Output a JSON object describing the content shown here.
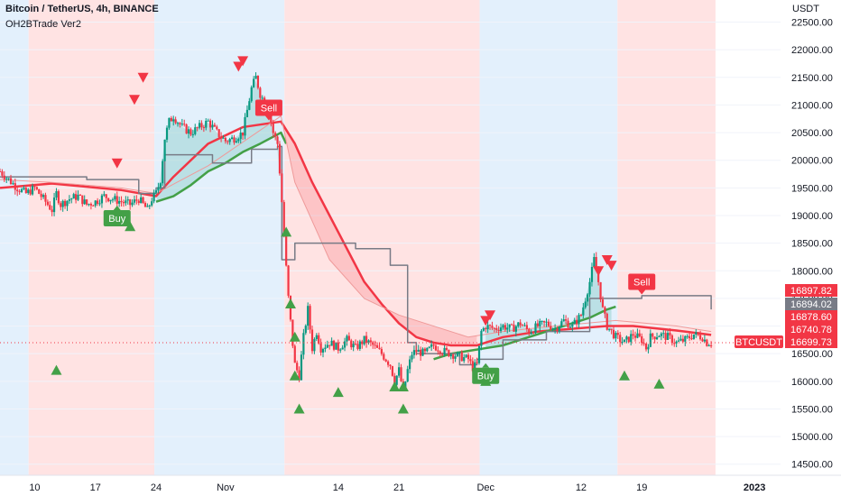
{
  "header": {
    "title": "Bitcoin / TetherUS, 4h, BINANCE",
    "indicator": "OH2BTrade Ver2",
    "currency": "USDT"
  },
  "colors": {
    "up": "#089981",
    "down": "#f23645",
    "buy": "#43a047",
    "sell": "#f23645",
    "band_red": "#ffe3e3",
    "band_blue": "#e3f0fc",
    "axis_text": "#131722",
    "grid": "#f0f3fa"
  },
  "chart_data": {
    "type": "candlestick",
    "ylim": [
      14300,
      22900
    ],
    "y_ticks": [
      14500,
      15000,
      15500,
      16000,
      16500,
      17000,
      17500,
      18000,
      18500,
      19000,
      19500,
      20000,
      20500,
      21000,
      21500,
      22000,
      22500
    ],
    "y_tick_labels": [
      "14500.00",
      "15000.00",
      "15500.00",
      "16000.00",
      "16500.00",
      "17000.00",
      "17500.00",
      "18000.00",
      "18500.00",
      "19000.00",
      "19500.00",
      "20000.00",
      "20500.00",
      "21000.00",
      "21500.00",
      "22000.00",
      "22500.00"
    ],
    "x_ticks": [
      {
        "label": "10",
        "t": 10
      },
      {
        "label": "17",
        "t": 17
      },
      {
        "label": "24",
        "t": 24
      },
      {
        "label": "Nov",
        "t": 32
      },
      {
        "label": "14",
        "t": 45
      },
      {
        "label": "21",
        "t": 52
      },
      {
        "label": "Dec",
        "t": 62
      },
      {
        "label": "12",
        "t": 73
      },
      {
        "label": "19",
        "t": 80
      },
      {
        "label": "2023",
        "t": 93
      }
    ],
    "background_bands": [
      {
        "from": 6,
        "to": 9.3,
        "color": "blue"
      },
      {
        "from": 9.3,
        "to": 23.8,
        "color": "red"
      },
      {
        "from": 23.8,
        "to": 38.8,
        "color": "blue"
      },
      {
        "from": 38.8,
        "to": 61.3,
        "color": "red"
      },
      {
        "from": 61.3,
        "to": 77.2,
        "color": "blue"
      },
      {
        "from": 77.2,
        "to": 88.5,
        "color": "red"
      }
    ],
    "price_path": [
      [
        6,
        19800
      ],
      [
        7,
        19650
      ],
      [
        8,
        19500
      ],
      [
        9,
        19400
      ],
      [
        10,
        19500
      ],
      [
        11,
        19300
      ],
      [
        12,
        19100
      ],
      [
        12.5,
        19400
      ],
      [
        13,
        19200
      ],
      [
        14,
        19300
      ],
      [
        15,
        19350
      ],
      [
        16,
        19200
      ],
      [
        17,
        19250
      ],
      [
        18,
        19350
      ],
      [
        19,
        19300
      ],
      [
        20,
        19250
      ],
      [
        21,
        19200
      ],
      [
        22,
        19300
      ],
      [
        23,
        19100
      ],
      [
        23.5,
        19300
      ],
      [
        24,
        19400
      ],
      [
        24.5,
        19650
      ],
      [
        25,
        20400
      ],
      [
        25.5,
        20700
      ],
      [
        26,
        20800
      ],
      [
        27,
        20600
      ],
      [
        28,
        20500
      ],
      [
        29,
        20600
      ],
      [
        30,
        20700
      ],
      [
        31,
        20500
      ],
      [
        32,
        20350
      ],
      [
        33,
        20400
      ],
      [
        34,
        20500
      ],
      [
        35,
        21300
      ],
      [
        35.5,
        21500
      ],
      [
        36,
        21200
      ],
      [
        37,
        20900
      ],
      [
        37.5,
        20500
      ],
      [
        38,
        20300
      ],
      [
        38.4,
        19500
      ],
      [
        38.8,
        18500
      ],
      [
        39.2,
        17600
      ],
      [
        39.6,
        16900
      ],
      [
        40,
        16300
      ],
      [
        40.5,
        16100
      ],
      [
        41,
        16800
      ],
      [
        41.5,
        17300
      ],
      [
        42,
        16600
      ],
      [
        42.5,
        16900
      ],
      [
        43,
        16600
      ],
      [
        44,
        16700
      ],
      [
        45,
        16600
      ],
      [
        46,
        16750
      ],
      [
        47,
        16600
      ],
      [
        48,
        16750
      ],
      [
        49,
        16650
      ],
      [
        50,
        16500
      ],
      [
        51,
        16300
      ],
      [
        51.5,
        16000
      ],
      [
        52,
        16200
      ],
      [
        52.5,
        15800
      ],
      [
        53,
        16200
      ],
      [
        53.5,
        16500
      ],
      [
        54,
        16550
      ],
      [
        55,
        16500
      ],
      [
        56,
        16650
      ],
      [
        57,
        16550
      ],
      [
        58,
        16500
      ],
      [
        59,
        16450
      ],
      [
        60,
        16400
      ],
      [
        60.5,
        16250
      ],
      [
        61,
        16300
      ],
      [
        61.5,
        16900
      ],
      [
        62,
        17000
      ],
      [
        63,
        16950
      ],
      [
        64,
        17000
      ],
      [
        65,
        16950
      ],
      [
        66,
        17050
      ],
      [
        67,
        16900
      ],
      [
        68,
        17000
      ],
      [
        69,
        17050
      ],
      [
        70,
        16950
      ],
      [
        71,
        17100
      ],
      [
        72,
        17000
      ],
      [
        73,
        17200
      ],
      [
        73.5,
        17500
      ],
      [
        74,
        17800
      ],
      [
        74.5,
        18200
      ],
      [
        75,
        17800
      ],
      [
        75.5,
        17300
      ],
      [
        76,
        17000
      ],
      [
        76.5,
        16900
      ],
      [
        77,
        16800
      ],
      [
        77.5,
        16750
      ],
      [
        78,
        16700
      ],
      [
        79,
        16850
      ],
      [
        80,
        16750
      ],
      [
        80.5,
        16600
      ],
      [
        81,
        16800
      ],
      [
        82,
        16850
      ],
      [
        83,
        16800
      ],
      [
        84,
        16700
      ],
      [
        85,
        16750
      ],
      [
        86,
        16850
      ],
      [
        87,
        16800
      ],
      [
        87.5,
        16700
      ],
      [
        88,
        16700
      ]
    ],
    "series": [
      {
        "name": "",
        "color": "#f23645",
        "width": 2.5,
        "points": [
          [
            6,
            19500
          ],
          [
            12,
            19580
          ],
          [
            20,
            19460
          ],
          [
            24,
            19350
          ],
          [
            26,
            19700
          ],
          [
            30,
            20300
          ],
          [
            34,
            20600
          ],
          [
            38.4,
            20700
          ],
          [
            40,
            20300
          ],
          [
            42,
            19600
          ],
          [
            44,
            19000
          ],
          [
            46,
            18400
          ],
          [
            48,
            17800
          ],
          [
            50,
            17400
          ],
          [
            52,
            17050
          ],
          [
            54,
            16800
          ],
          [
            56,
            16700
          ],
          [
            58,
            16650
          ],
          [
            61,
            16650
          ],
          [
            64,
            16800
          ],
          [
            68,
            16900
          ],
          [
            72,
            16950
          ],
          [
            76,
            17000
          ],
          [
            79,
            17000
          ],
          [
            84,
            16920
          ],
          [
            88,
            16840
          ]
        ]
      },
      {
        "name": "",
        "color": "#43a047",
        "width": 2.5,
        "points": [
          [
            24,
            19250
          ],
          [
            26,
            19350
          ],
          [
            28,
            19550
          ],
          [
            30,
            19800
          ],
          [
            32,
            19950
          ],
          [
            34,
            20150
          ],
          [
            36,
            20300
          ],
          [
            38.4,
            20500
          ],
          [
            39,
            20300
          ]
        ]
      },
      {
        "name": "",
        "color": "#43a047",
        "width": 2.5,
        "points": [
          [
            56,
            16400
          ],
          [
            58,
            16500
          ],
          [
            60,
            16550
          ],
          [
            62,
            16600
          ],
          [
            64,
            16650
          ],
          [
            66,
            16750
          ],
          [
            68,
            16850
          ],
          [
            70,
            16950
          ],
          [
            72,
            17050
          ],
          [
            74,
            17150
          ],
          [
            76,
            17300
          ],
          [
            77,
            17350
          ]
        ]
      },
      {
        "name": "",
        "color": "#ef9a9a",
        "width": 1,
        "points": [
          [
            6,
            19650
          ],
          [
            12,
            19600
          ],
          [
            20,
            19500
          ],
          [
            24,
            19400
          ],
          [
            30,
            19900
          ],
          [
            38.4,
            20800
          ],
          [
            40,
            19600
          ],
          [
            44,
            18200
          ],
          [
            48,
            17500
          ],
          [
            52,
            17200
          ],
          [
            56,
            17000
          ],
          [
            60,
            16800
          ],
          [
            64,
            16900
          ],
          [
            70,
            17000
          ],
          [
            77,
            17100
          ],
          [
            84,
            17000
          ],
          [
            88,
            16900
          ]
        ]
      },
      {
        "name": "",
        "color": "#787b86",
        "width": 1.5,
        "step": true,
        "points": [
          [
            6,
            19700
          ],
          [
            9,
            19700
          ],
          [
            10,
            19700
          ],
          [
            16,
            19650
          ],
          [
            22,
            19400
          ],
          [
            24,
            19500
          ],
          [
            25,
            20100
          ],
          [
            30,
            20100
          ],
          [
            30.5,
            19950
          ],
          [
            34,
            19950
          ],
          [
            35,
            20200
          ],
          [
            38,
            20250
          ],
          [
            38.5,
            18200
          ],
          [
            40,
            18500
          ],
          [
            46,
            18500
          ],
          [
            47,
            18400
          ],
          [
            50,
            18400
          ],
          [
            51,
            18100
          ],
          [
            53,
            16700
          ],
          [
            54,
            16500
          ],
          [
            58,
            16500
          ],
          [
            59,
            16300
          ],
          [
            61,
            16400
          ],
          [
            62,
            16400
          ],
          [
            64,
            16750
          ],
          [
            68,
            16750
          ],
          [
            69,
            16900
          ],
          [
            73,
            16900
          ],
          [
            74,
            17500
          ],
          [
            79,
            17500
          ],
          [
            80,
            17550
          ],
          [
            87,
            17550
          ],
          [
            88,
            17300
          ]
        ]
      }
    ],
    "buy_markers": [
      [
        12.5,
        16200
      ],
      [
        21,
        18800
      ],
      [
        39,
        18700
      ],
      [
        39.5,
        17400
      ],
      [
        40,
        16800
      ],
      [
        40,
        16100
      ],
      [
        40.5,
        15500
      ],
      [
        45,
        15800
      ],
      [
        51.5,
        15900
      ],
      [
        52.5,
        15500
      ],
      [
        52.5,
        15900
      ],
      [
        62,
        16000
      ],
      [
        78,
        16100
      ],
      [
        82,
        15950
      ]
    ],
    "sell_markers": [
      [
        19.5,
        19950
      ],
      [
        21.5,
        21100
      ],
      [
        22.5,
        21500
      ],
      [
        33.5,
        21700
      ],
      [
        34,
        21800
      ],
      [
        62,
        17100
      ],
      [
        62.5,
        17200
      ],
      [
        75,
        18000
      ],
      [
        76,
        18200
      ],
      [
        76.5,
        18100
      ]
    ],
    "buy_labels": [
      {
        "t": 19.5,
        "price": 18950,
        "text": "Buy"
      },
      {
        "t": 62,
        "price": 16100,
        "text": "Buy"
      }
    ],
    "sell_labels": [
      {
        "t": 4,
        "price": 20350,
        "text": "Sell"
      },
      {
        "t": 37,
        "price": 20950,
        "text": "Sell"
      },
      {
        "t": 80,
        "price": 17800,
        "text": "Sell"
      }
    ],
    "current_price_line": 16699.73,
    "price_tags": [
      {
        "text": "16897.82",
        "price": 16897.82,
        "color": "#f23645"
      },
      {
        "text": "16894.02",
        "price": 16894.02,
        "color": "#787b86"
      },
      {
        "text": "16878.60",
        "price": 16878.6,
        "color": "#f23645"
      },
      {
        "text": "16740.78",
        "price": 16740.78,
        "color": "#f23645"
      },
      {
        "text": "16699.73",
        "price": 16699.73,
        "color": "#f23645"
      }
    ],
    "symbol_tag": {
      "text": "BTCUSDT",
      "price": 16699.73,
      "color": "#f23645"
    }
  }
}
